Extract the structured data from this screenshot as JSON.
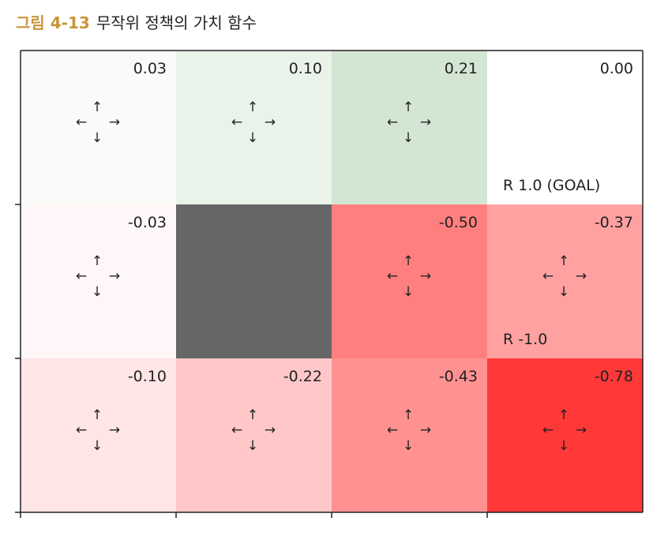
{
  "caption": {
    "figure_number": "그림 4-13",
    "title": "무작위 정책의 가치 함수"
  },
  "colors": {
    "positive": "#2e8b2e",
    "negative": "#ff0000",
    "wall": "#666666",
    "caption_accent": "#c9953a"
  },
  "arrows": {
    "up": "↑",
    "down": "↓",
    "left": "←",
    "right": "→"
  },
  "chart_data": {
    "type": "heatmap",
    "title": "",
    "rows": 3,
    "cols": 4,
    "value_range": [
      -1,
      1
    ],
    "cells": [
      {
        "row": 0,
        "col": 0,
        "value": 0.03,
        "label": "0.03",
        "arrows": true
      },
      {
        "row": 0,
        "col": 1,
        "value": 0.1,
        "label": "0.10",
        "arrows": true
      },
      {
        "row": 0,
        "col": 2,
        "value": 0.21,
        "label": "0.21",
        "arrows": true
      },
      {
        "row": 0,
        "col": 3,
        "value": 0.0,
        "label": "0.00",
        "arrows": false,
        "reward": "R 1.0 (GOAL)"
      },
      {
        "row": 1,
        "col": 0,
        "value": -0.03,
        "label": "-0.03",
        "arrows": true
      },
      {
        "row": 1,
        "col": 1,
        "wall": true
      },
      {
        "row": 1,
        "col": 2,
        "value": -0.5,
        "label": "-0.50",
        "arrows": true
      },
      {
        "row": 1,
        "col": 3,
        "value": -0.37,
        "label": "-0.37",
        "arrows": true,
        "reward": "R -1.0"
      },
      {
        "row": 2,
        "col": 0,
        "value": -0.1,
        "label": "-0.10",
        "arrows": true
      },
      {
        "row": 2,
        "col": 1,
        "value": -0.22,
        "label": "-0.22",
        "arrows": true
      },
      {
        "row": 2,
        "col": 2,
        "value": -0.43,
        "label": "-0.43",
        "arrows": true
      },
      {
        "row": 2,
        "col": 3,
        "value": -0.78,
        "label": "-0.78",
        "arrows": true
      }
    ]
  }
}
